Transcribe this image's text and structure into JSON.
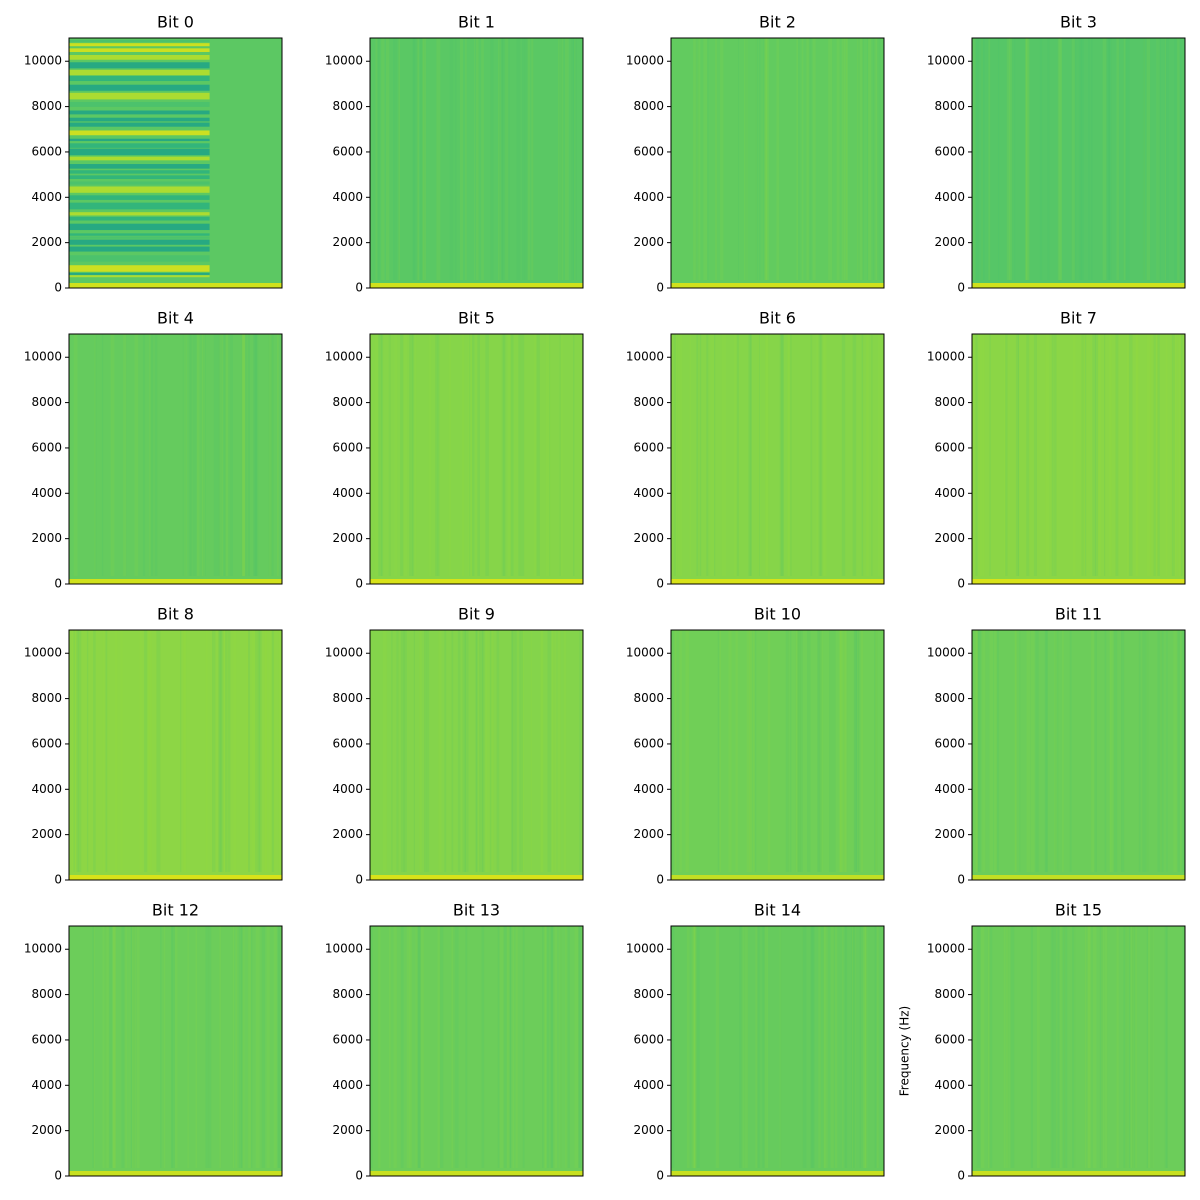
{
  "chart_data": [
    {
      "type": "spectrogram",
      "title": "Bit 0",
      "ylim": [
        0,
        11025
      ],
      "yticks": [
        0,
        2000,
        4000,
        6000,
        8000,
        10000
      ],
      "color": "#5cc863",
      "band_color": "#d0e11c"
    },
    {
      "type": "spectrogram",
      "title": "Bit 1",
      "ylim": [
        0,
        11025
      ],
      "yticks": [
        0,
        2000,
        4000,
        6000,
        8000,
        10000
      ],
      "color": "#5ac864",
      "band_color": "#d0e11c"
    },
    {
      "type": "spectrogram",
      "title": "Bit 2",
      "ylim": [
        0,
        11025
      ],
      "yticks": [
        0,
        2000,
        4000,
        6000,
        8000,
        10000
      ],
      "color": "#62cb5f",
      "band_color": "#d0e11c"
    },
    {
      "type": "spectrogram",
      "title": "Bit 3",
      "ylim": [
        0,
        11025
      ],
      "yticks": [
        0,
        2000,
        4000,
        6000,
        8000,
        10000
      ],
      "color": "#56c667",
      "band_color": "#d0e11c"
    },
    {
      "type": "spectrogram",
      "title": "Bit 4",
      "ylim": [
        0,
        11025
      ],
      "yticks": [
        0,
        2000,
        4000,
        6000,
        8000,
        10000
      ],
      "color": "#65cb5e",
      "band_color": "#d0e11c"
    },
    {
      "type": "spectrogram",
      "title": "Bit 5",
      "ylim": [
        0,
        11025
      ],
      "yticks": [
        0,
        2000,
        4000,
        6000,
        8000,
        10000
      ],
      "color": "#86d549",
      "band_color": "#d8e219"
    },
    {
      "type": "spectrogram",
      "title": "Bit 6",
      "ylim": [
        0,
        11025
      ],
      "yticks": [
        0,
        2000,
        4000,
        6000,
        8000,
        10000
      ],
      "color": "#86d549",
      "band_color": "#d8e219"
    },
    {
      "type": "spectrogram",
      "title": "Bit 7",
      "ylim": [
        0,
        11025
      ],
      "yticks": [
        0,
        2000,
        4000,
        6000,
        8000,
        10000
      ],
      "color": "#8bd646",
      "band_color": "#d8e219"
    },
    {
      "type": "spectrogram",
      "title": "Bit 8",
      "ylim": [
        0,
        11025
      ],
      "yticks": [
        0,
        2000,
        4000,
        6000,
        8000,
        10000
      ],
      "color": "#8dd645",
      "band_color": "#d8e219"
    },
    {
      "type": "spectrogram",
      "title": "Bit 9",
      "ylim": [
        0,
        11025
      ],
      "yticks": [
        0,
        2000,
        4000,
        6000,
        8000,
        10000
      ],
      "color": "#84d44b",
      "band_color": "#d8e219"
    },
    {
      "type": "spectrogram",
      "title": "Bit 10",
      "ylim": [
        0,
        11025
      ],
      "yticks": [
        0,
        2000,
        4000,
        6000,
        8000,
        10000
      ],
      "color": "#70cf57",
      "band_color": "#c2df23"
    },
    {
      "type": "spectrogram",
      "title": "Bit 11",
      "ylim": [
        0,
        11025
      ],
      "yticks": [
        0,
        2000,
        4000,
        6000,
        8000,
        10000
      ],
      "color": "#6ccd5a",
      "band_color": "#c2df23"
    },
    {
      "type": "spectrogram",
      "title": "Bit 12",
      "ylim": [
        0,
        11025
      ],
      "yticks": [
        0,
        2000,
        4000,
        6000,
        8000,
        10000
      ],
      "color": "#6ccd5a",
      "band_color": "#c8e020"
    },
    {
      "type": "spectrogram",
      "title": "Bit 13",
      "ylim": [
        0,
        11025
      ],
      "yticks": [
        0,
        2000,
        4000,
        6000,
        8000,
        10000
      ],
      "color": "#6ccd5a",
      "band_color": "#c8e020"
    },
    {
      "type": "spectrogram",
      "title": "Bit 14",
      "ylim": [
        0,
        11025
      ],
      "yticks": [
        0,
        2000,
        4000,
        6000,
        8000,
        10000
      ],
      "color": "#66cb5d",
      "band_color": "#c8e020"
    },
    {
      "type": "spectrogram",
      "title": "Bit 15",
      "ylim": [
        0,
        11025
      ],
      "yticks": [
        0,
        2000,
        4000,
        6000,
        8000,
        10000
      ],
      "color": "#6ccd5a",
      "band_color": "#c8e020",
      "ylabel": "Frequency (Hz)"
    }
  ]
}
